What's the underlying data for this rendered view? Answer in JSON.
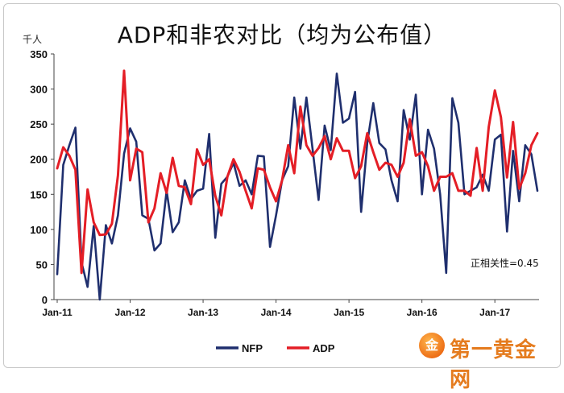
{
  "chart_data": {
    "type": "line",
    "title": "ADP和非农对比（均为公布值）",
    "ylabel": "千人",
    "ylim": [
      0,
      350
    ],
    "yticks": [
      0,
      50,
      100,
      150,
      200,
      250,
      300,
      350
    ],
    "xticks": [
      "Jan-11",
      "Jan-12",
      "Jan-13",
      "Jan-14",
      "Jan-15",
      "Jan-16",
      "Jan-17"
    ],
    "x_start": "Jan-11",
    "x_end": "Aug-17",
    "grid": false,
    "legend_position": "bottom-center",
    "annotation": "正相关性=0.45",
    "series": [
      {
        "name": "NFP",
        "color": "#1f2f6e",
        "values": [
          36,
          192,
          220,
          245,
          53,
          18,
          105,
          0,
          106,
          80,
          120,
          208,
          244,
          225,
          120,
          115,
          70,
          80,
          155,
          96,
          110,
          170,
          143,
          155,
          158,
          236,
          88,
          165,
          175,
          195,
          162,
          170,
          150,
          205,
          204,
          75,
          120,
          170,
          190,
          288,
          215,
          288,
          215,
          142,
          248,
          213,
          322,
          252,
          258,
          296,
          125,
          223,
          280,
          223,
          214,
          170,
          140,
          270,
          228,
          292,
          150,
          242,
          215,
          150,
          38,
          287,
          252,
          150,
          155,
          160,
          178,
          155,
          228,
          235,
          97,
          212,
          140,
          220,
          207,
          155
        ]
      },
      {
        "name": "ADP",
        "color": "#e41e26",
        "values": [
          187,
          217,
          205,
          185,
          38,
          157,
          110,
          92,
          93,
          108,
          177,
          326,
          170,
          215,
          210,
          110,
          130,
          180,
          152,
          202,
          162,
          160,
          136,
          214,
          192,
          200,
          148,
          120,
          175,
          200,
          182,
          155,
          130,
          187,
          185,
          160,
          140,
          170,
          220,
          180,
          275,
          220,
          205,
          216,
          233,
          200,
          230,
          212,
          212,
          173,
          190,
          237,
          210,
          185,
          195,
          192,
          175,
          195,
          257,
          205,
          210,
          190,
          155,
          175,
          175,
          180,
          155,
          155,
          148,
          216,
          155,
          246,
          298,
          260,
          174,
          253,
          158,
          180,
          220,
          237
        ]
      }
    ]
  },
  "watermark": {
    "icon_glyph": "金",
    "text": "第一黄金网"
  }
}
